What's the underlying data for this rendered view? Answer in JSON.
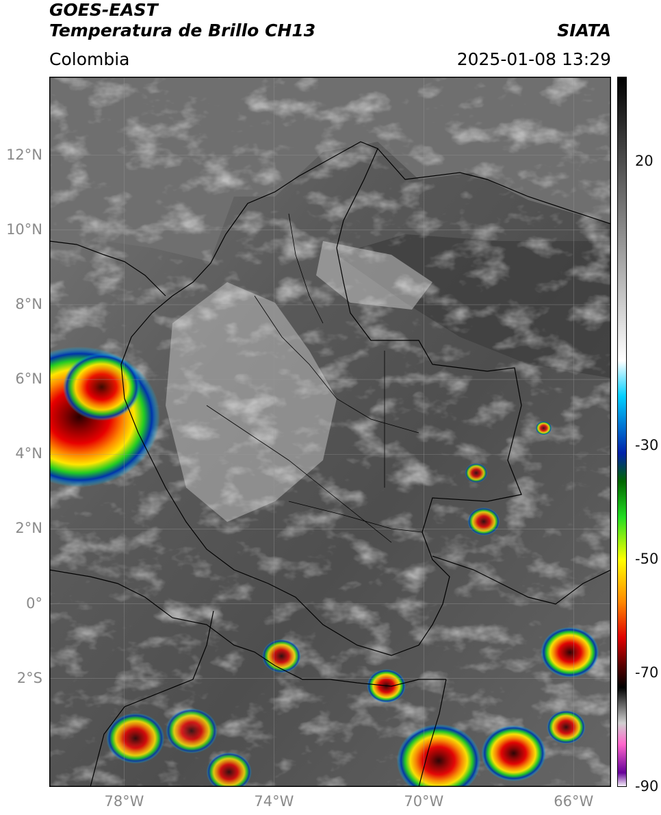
{
  "header": {
    "satellite": "GOES-EAST",
    "product": "Temperatura de Brillo CH13",
    "brand": "SIATA",
    "region": "Colombia",
    "timestamp": "2025-01-08 13:29"
  },
  "map": {
    "lat_range": [
      -4.9,
      14.1
    ],
    "lon_range": [
      -80.0,
      -65.0
    ],
    "lat_ticks": [
      {
        "value": 12,
        "label": "12°N"
      },
      {
        "value": 10,
        "label": "10°N"
      },
      {
        "value": 8,
        "label": "8°N"
      },
      {
        "value": 6,
        "label": "6°N"
      },
      {
        "value": 4,
        "label": "4°N"
      },
      {
        "value": 2,
        "label": "2°N"
      },
      {
        "value": 0,
        "label": "0°"
      },
      {
        "value": -2,
        "label": "2°S"
      }
    ],
    "lon_ticks": [
      {
        "value": -78,
        "label": "78°W"
      },
      {
        "value": -74,
        "label": "74°W"
      },
      {
        "value": -70,
        "label": "70°W"
      },
      {
        "value": -66,
        "label": "66°W"
      }
    ],
    "grid": true,
    "colors": {
      "land_dark": "#444444",
      "land_mid": "#6e6e6e",
      "cloud_warm": "#d8d8d8",
      "convective_green": "#22cc22",
      "convective_yellow": "#ffe600",
      "convective_red": "#e00000",
      "convective_core": "#3a0000",
      "border": "#000000",
      "gridline": "#9a9a9a"
    },
    "storm_cells": [
      {
        "lat": 5.0,
        "lon": -79.2,
        "intensity": 1.0,
        "size": 2.5
      },
      {
        "lat": 5.8,
        "lon": -78.6,
        "intensity": 0.8,
        "size": 1.2
      },
      {
        "lat": -3.6,
        "lon": -77.7,
        "intensity": 0.7,
        "size": 0.9
      },
      {
        "lat": -3.4,
        "lon": -76.2,
        "intensity": 0.6,
        "size": 0.8
      },
      {
        "lat": -4.5,
        "lon": -75.2,
        "intensity": 0.6,
        "size": 0.7
      },
      {
        "lat": -1.4,
        "lon": -73.8,
        "intensity": 0.6,
        "size": 0.6
      },
      {
        "lat": -2.2,
        "lon": -71.0,
        "intensity": 0.8,
        "size": 0.6
      },
      {
        "lat": -4.2,
        "lon": -69.6,
        "intensity": 0.9,
        "size": 1.3
      },
      {
        "lat": -4.0,
        "lon": -67.6,
        "intensity": 0.9,
        "size": 1.0
      },
      {
        "lat": -1.3,
        "lon": -66.1,
        "intensity": 0.9,
        "size": 0.9
      },
      {
        "lat": -3.3,
        "lon": -66.2,
        "intensity": 0.7,
        "size": 0.6
      },
      {
        "lat": 2.2,
        "lon": -68.4,
        "intensity": 0.6,
        "size": 0.5
      },
      {
        "lat": 3.5,
        "lon": -68.6,
        "intensity": 0.5,
        "size": 0.35
      },
      {
        "lat": 4.7,
        "lon": -66.8,
        "intensity": 0.6,
        "size": 0.25
      }
    ]
  },
  "colorbar": {
    "vmin": -90,
    "vmax": 35,
    "ticks": [
      {
        "value": 20,
        "label": "20"
      },
      {
        "value": -30,
        "label": "-30"
      },
      {
        "value": -50,
        "label": "-50"
      },
      {
        "value": -70,
        "label": "-70"
      },
      {
        "value": -90,
        "label": "-90"
      }
    ]
  }
}
